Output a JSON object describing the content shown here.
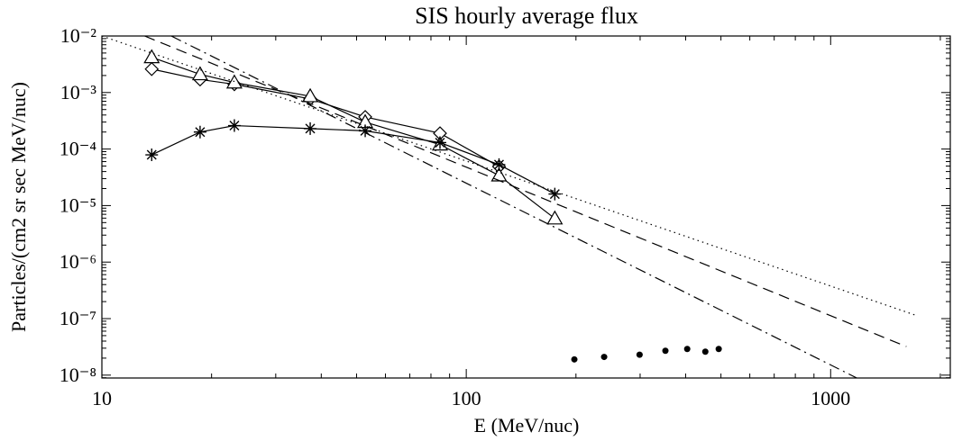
{
  "chart_data": {
    "type": "scatter",
    "title": "SIS hourly average flux",
    "x_label": "E (MeV/nuc)",
    "y_label": "Particles/(cm2 sr sec MeV/nuc)",
    "xscale": "log",
    "yscale": "log",
    "xlim": [
      10,
      2130
    ],
    "ylim": [
      8.9e-09,
      0.01
    ],
    "xticks": [
      10,
      100,
      1000
    ],
    "yticks": [
      {
        "value": 0.01,
        "label": "10⁻²"
      },
      {
        "value": 0.001,
        "label": "10⁻³"
      },
      {
        "value": 0.0001,
        "label": "10⁻⁴"
      },
      {
        "value": 1e-05,
        "label": "10⁻⁵"
      },
      {
        "value": 1e-06,
        "label": "10⁻⁶"
      },
      {
        "value": 1e-07,
        "label": "10⁻⁷"
      },
      {
        "value": 1e-08,
        "label": "10⁻⁸"
      }
    ],
    "series": [
      {
        "color": "#000000",
        "marker": "diamond",
        "linestyle": "solid",
        "x": [
          13.7,
          18.6,
          23.1,
          37.3,
          52.8,
          84.7,
          123
        ],
        "values": [
          0.0026,
          0.0017,
          0.0014,
          0.00077,
          0.00037,
          0.00019,
          4.9e-05
        ]
      },
      {
        "color": "#000000",
        "marker": "triangle",
        "linestyle": "solid",
        "x": [
          13.7,
          18.6,
          23.1,
          37.3,
          52.8,
          84.7,
          123,
          175
        ],
        "values": [
          0.0042,
          0.0021,
          0.0015,
          0.00086,
          0.0003,
          0.00012,
          3.4e-05,
          5.9e-06
        ]
      },
      {
        "color": "#000000",
        "marker": "asterisk",
        "linestyle": "solid",
        "x": [
          13.7,
          18.6,
          23.1,
          37.3,
          52.8,
          84.7,
          123,
          175
        ],
        "values": [
          7.9e-05,
          0.0002,
          0.00026,
          0.00023,
          0.00021,
          0.00013,
          5.3e-05,
          1.6e-05
        ]
      },
      {
        "color": "#000000",
        "marker": "dot",
        "linestyle": "none",
        "x": [
          198,
          239,
          299,
          352,
          404,
          453,
          493
        ],
        "values": [
          1.9e-08,
          2.1e-08,
          2.3e-08,
          2.7e-08,
          2.9e-08,
          2.6e-08,
          2.9e-08
        ]
      },
      {
        "color": "#000000",
        "marker": "none",
        "linestyle": "dotted",
        "x": [
          10,
          1710
        ],
        "values": [
          0.01,
          1.15e-07
        ]
      },
      {
        "color": "#000000",
        "marker": "none",
        "linestyle": "dashed",
        "x": [
          13.1,
          1614
        ],
        "values": [
          0.01,
          3.2e-08
        ]
      },
      {
        "color": "#000000",
        "marker": "none",
        "linestyle": "dashdot",
        "x": [
          15.5,
          1180
        ],
        "values": [
          0.01,
          8.9e-09
        ]
      }
    ]
  }
}
